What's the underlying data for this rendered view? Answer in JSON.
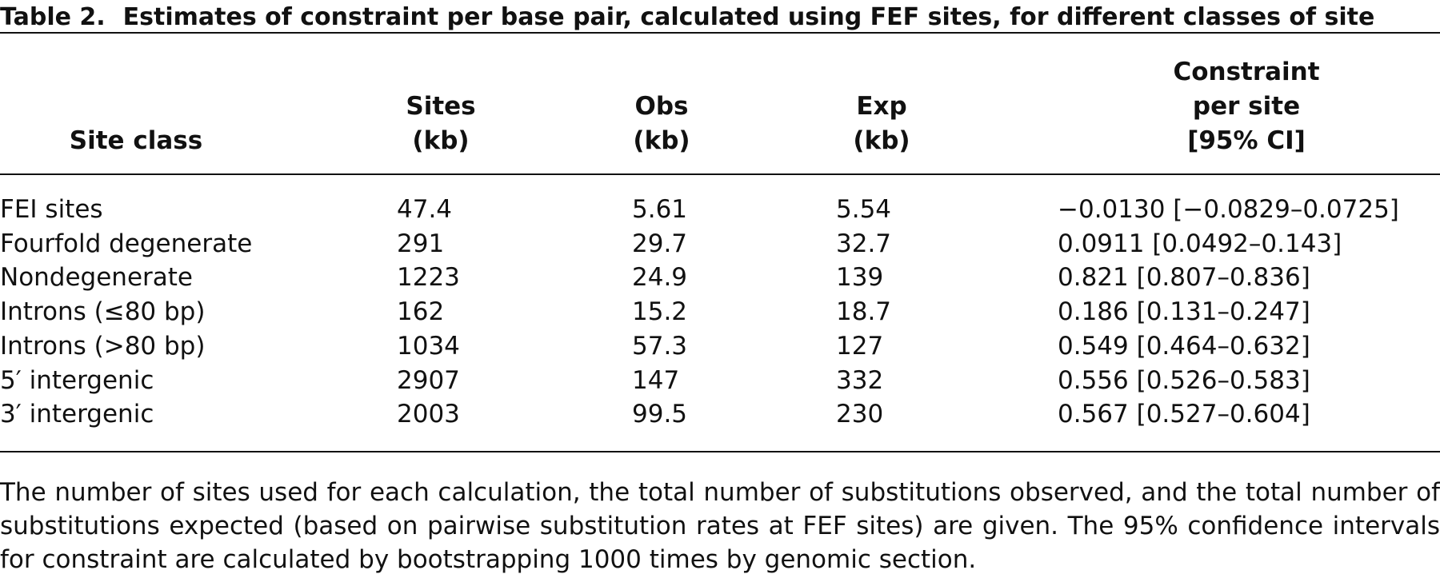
{
  "title": {
    "label": "Table 2.",
    "text": "Estimates of constraint per base pair, calculated using FEF sites, for different classes of site"
  },
  "table": {
    "header": [
      [
        "Site class"
      ],
      [
        "Sites",
        "(kb)"
      ],
      [
        "Obs",
        "(kb)"
      ],
      [
        "Exp",
        "(kb)"
      ],
      [
        "Constraint",
        "per site",
        "[95% CI]"
      ]
    ],
    "rows": [
      [
        "FEI sites",
        "47.4",
        "5.61",
        "5.54",
        "−0.0130 [−0.0829–0.0725]"
      ],
      [
        "Fourfold degenerate",
        "291",
        "29.7",
        "32.7",
        "0.0911 [0.0492–0.143]"
      ],
      [
        "Nondegenerate",
        "1223",
        "24.9",
        "139",
        "0.821 [0.807–0.836]"
      ],
      [
        "Introns (≤80 bp)",
        "162",
        "15.2",
        "18.7",
        "0.186 [0.131–0.247]"
      ],
      [
        "Introns (>80 bp)",
        "1034",
        "57.3",
        "127",
        "0.549 [0.464–0.632]"
      ],
      [
        "5′ intergenic",
        "2907",
        "147",
        "332",
        "0.556 [0.526–0.583]"
      ],
      [
        "3′ intergenic",
        "2003",
        "99.5",
        "230",
        "0.567 [0.527–0.604]"
      ]
    ]
  },
  "footnote": "The number of sites used for each calculation, the total number of substitutions observed, and the total number of substitutions expected (based on pairwise substitution rates at FEF sites) are given. The 95% confidence intervals for constraint are calculated by bootstrapping 1000 times by genomic section."
}
